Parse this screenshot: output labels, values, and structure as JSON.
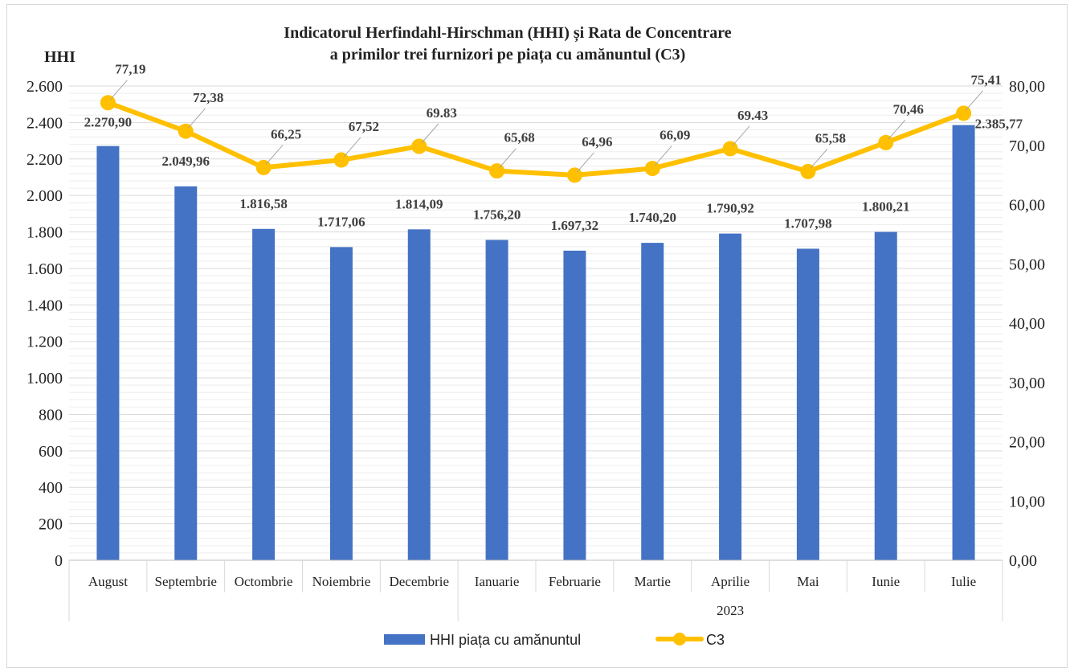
{
  "chart_data": {
    "type": "bar",
    "title_line1": "Indicatorul Herfindahl-Hirschman (HHI) și Rata de Concentrare",
    "title_line2": "a primilor trei furnizori pe piața cu amănuntul (C3)",
    "ylabel_left": "HHI",
    "categories": [
      "August",
      "Septembrie",
      "Octombrie",
      "Noiembrie",
      "Decembrie",
      "Ianuarie",
      "Februarie",
      "Martie",
      "Aprilie",
      "Mai",
      "Iunie",
      "Iulie"
    ],
    "group_label": "2023",
    "series": [
      {
        "name": "HHI piața cu amănuntul",
        "kind": "bar",
        "axis": "left",
        "color": "#4472C4",
        "values": [
          2270.9,
          2049.96,
          1816.58,
          1717.06,
          1814.09,
          1756.2,
          1697.32,
          1740.2,
          1790.92,
          1707.98,
          1800.21,
          2385.77
        ],
        "labels": [
          "2.270,90",
          "2.049,96",
          "1.816,58",
          "1.717,06",
          "1.814,09",
          "1.756,20",
          "1.697,32",
          "1.740,20",
          "1.790,92",
          "1.707,98",
          "1.800,21",
          "2.385,77"
        ]
      },
      {
        "name": "C3",
        "kind": "line",
        "axis": "right",
        "color": "#FFC000",
        "values": [
          77.19,
          72.38,
          66.25,
          67.52,
          69.83,
          65.68,
          64.96,
          66.09,
          69.43,
          65.58,
          70.46,
          75.41
        ],
        "labels": [
          "77,19",
          "72,38",
          "66,25",
          "67,52",
          "69.83",
          "65,68",
          "64,96",
          "66,09",
          "69.43",
          "65,58",
          "70,46",
          "75,41"
        ]
      }
    ],
    "y_left": {
      "min": 0,
      "max": 2600,
      "ticks": [
        0,
        200,
        400,
        600,
        800,
        1000,
        1200,
        1400,
        1600,
        1800,
        2000,
        2200,
        2400,
        2600
      ],
      "tick_labels": [
        "0",
        "200",
        "400",
        "600",
        "800",
        "1.000",
        "1.200",
        "1.400",
        "1.600",
        "1.800",
        "2.000",
        "2.200",
        "2.400",
        "2.600"
      ]
    },
    "y_right": {
      "min": 0,
      "max": 80,
      "ticks": [
        0,
        10,
        20,
        30,
        40,
        50,
        60,
        70,
        80
      ],
      "tick_labels": [
        "0,00",
        "10,00",
        "20,00",
        "30,00",
        "40,00",
        "50,00",
        "60,00",
        "70,00",
        "80,00"
      ]
    },
    "grid": true,
    "legend_position": "bottom"
  }
}
